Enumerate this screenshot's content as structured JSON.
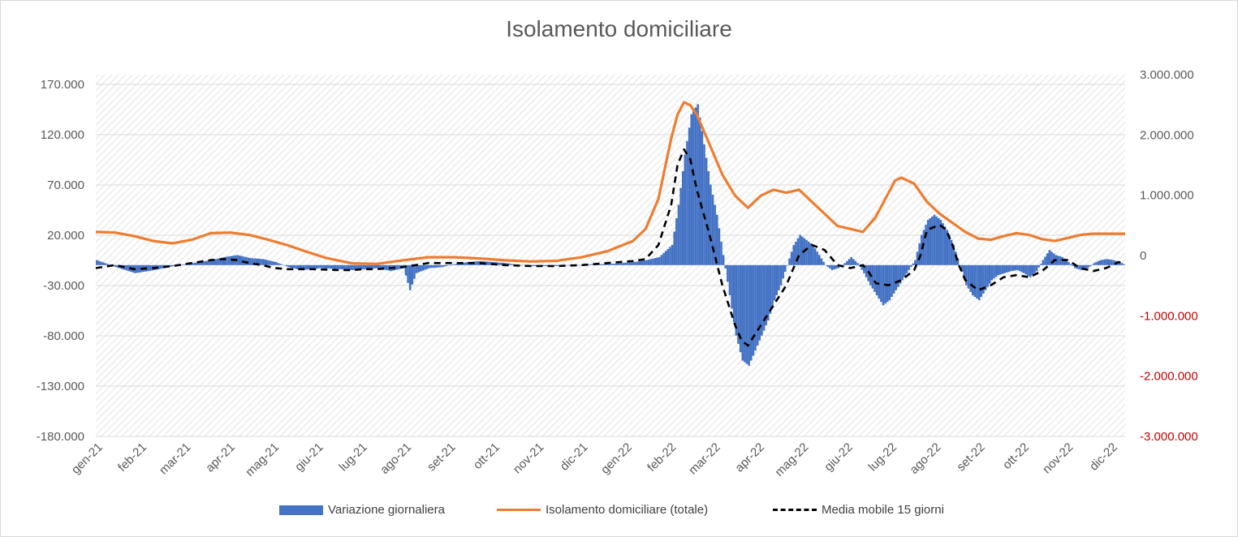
{
  "chart_data": {
    "type": "bar+line",
    "title": "Isolamento domiciliare",
    "x_labels": [
      "gen-21",
      "feb-21",
      "mar-21",
      "apr-21",
      "mag-21",
      "giu-21",
      "lug-21",
      "ago-21",
      "set-21",
      "ott-21",
      "nov-21",
      "dic-21",
      "gen-22",
      "feb-22",
      "mar-22",
      "apr-22",
      "mag-22",
      "giu-22",
      "lug-22",
      "ago-22",
      "set-22",
      "ott-22",
      "nov-22",
      "dic-22"
    ],
    "y_left": {
      "ticks": [
        "170.000",
        "120.000",
        "70.000",
        "20.000",
        "-30.000",
        "-80.000",
        "-130.000",
        "-180.000"
      ],
      "min": -180000,
      "max": 170000
    },
    "y_right": {
      "ticks": [
        "3.000.000",
        "2.000.000",
        "1.000.000",
        "0",
        "-1.000.000",
        "-2.000.000",
        "-3.000.000"
      ],
      "min": -3000000,
      "max": 3000000,
      "negative_color": "#c00000"
    },
    "grid": true,
    "legend_position": "bottom",
    "series": [
      {
        "name": "Variazione giornaliera",
        "type": "bar",
        "axis": "left",
        "color": "#4472c4",
        "points": [
          [
            0,
            5000
          ],
          [
            3,
            -2000
          ],
          [
            6,
            -8000
          ],
          [
            9,
            -5000
          ],
          [
            12,
            -1000
          ],
          [
            15,
            2000
          ],
          [
            18,
            5000
          ],
          [
            20,
            8000
          ],
          [
            22,
            10000
          ],
          [
            24,
            7000
          ],
          [
            26,
            6000
          ],
          [
            28,
            3000
          ],
          [
            30,
            -2000
          ],
          [
            32,
            -5000
          ],
          [
            35,
            -3000
          ],
          [
            38,
            -4000
          ],
          [
            40,
            -5000
          ],
          [
            42,
            -4000
          ],
          [
            44,
            -3000
          ],
          [
            46,
            -6000
          ],
          [
            48,
            -3000
          ],
          [
            49,
            -25000
          ],
          [
            50,
            -8000
          ],
          [
            52,
            -3000
          ],
          [
            54,
            -2000
          ],
          [
            56,
            1000
          ],
          [
            58,
            3000
          ],
          [
            60,
            4000
          ],
          [
            62,
            3000
          ],
          [
            64,
            2000
          ],
          [
            66,
            0
          ],
          [
            68,
            -1000
          ],
          [
            70,
            -1000
          ],
          [
            72,
            -1000
          ],
          [
            74,
            0
          ],
          [
            76,
            0
          ],
          [
            78,
            1000
          ],
          [
            80,
            1000
          ],
          [
            82,
            2000
          ],
          [
            84,
            3000
          ],
          [
            86,
            5000
          ],
          [
            88,
            8000
          ],
          [
            90,
            20000
          ],
          [
            91,
            60000
          ],
          [
            92,
            110000
          ],
          [
            93,
            150000
          ],
          [
            94,
            160000
          ],
          [
            95,
            120000
          ],
          [
            96,
            80000
          ],
          [
            97,
            50000
          ],
          [
            98,
            10000
          ],
          [
            99,
            -30000
          ],
          [
            100,
            -70000
          ],
          [
            101,
            -95000
          ],
          [
            102,
            -100000
          ],
          [
            103,
            -85000
          ],
          [
            104,
            -70000
          ],
          [
            105,
            -55000
          ],
          [
            106,
            -35000
          ],
          [
            107,
            -20000
          ],
          [
            108,
            0
          ],
          [
            109,
            20000
          ],
          [
            110,
            30000
          ],
          [
            111,
            25000
          ],
          [
            112,
            20000
          ],
          [
            113,
            10000
          ],
          [
            114,
            0
          ],
          [
            115,
            -5000
          ],
          [
            116,
            -3000
          ],
          [
            117,
            2000
          ],
          [
            118,
            8000
          ],
          [
            119,
            2000
          ],
          [
            120,
            -8000
          ],
          [
            121,
            -20000
          ],
          [
            122,
            -30000
          ],
          [
            123,
            -40000
          ],
          [
            124,
            -35000
          ],
          [
            125,
            -25000
          ],
          [
            126,
            -15000
          ],
          [
            127,
            -5000
          ],
          [
            128,
            5000
          ],
          [
            129,
            30000
          ],
          [
            130,
            45000
          ],
          [
            131,
            50000
          ],
          [
            132,
            45000
          ],
          [
            133,
            35000
          ],
          [
            134,
            20000
          ],
          [
            135,
            0
          ],
          [
            136,
            -20000
          ],
          [
            137,
            -30000
          ],
          [
            138,
            -35000
          ],
          [
            139,
            -25000
          ],
          [
            140,
            -15000
          ],
          [
            141,
            -10000
          ],
          [
            142,
            -8000
          ],
          [
            143,
            -6000
          ],
          [
            144,
            -5000
          ],
          [
            145,
            -8000
          ],
          [
            146,
            -12000
          ],
          [
            147,
            -6000
          ],
          [
            148,
            5000
          ],
          [
            149,
            15000
          ],
          [
            150,
            10000
          ],
          [
            151,
            8000
          ],
          [
            152,
            3000
          ],
          [
            153,
            -3000
          ],
          [
            154,
            -5000
          ],
          [
            155,
            -3000
          ],
          [
            156,
            2000
          ],
          [
            157,
            5000
          ],
          [
            158,
            6000
          ],
          [
            159,
            5000
          ],
          [
            160,
            3000
          ],
          [
            161,
            0
          ]
        ]
      },
      {
        "name": "Isolamento domiciliare (totale)",
        "type": "line",
        "axis": "right",
        "color": "#ed7d31",
        "points": [
          [
            0,
            550000
          ],
          [
            3,
            540000
          ],
          [
            6,
            480000
          ],
          [
            9,
            400000
          ],
          [
            12,
            360000
          ],
          [
            15,
            420000
          ],
          [
            18,
            530000
          ],
          [
            21,
            540000
          ],
          [
            24,
            500000
          ],
          [
            27,
            420000
          ],
          [
            30,
            330000
          ],
          [
            33,
            220000
          ],
          [
            36,
            120000
          ],
          [
            40,
            30000
          ],
          [
            44,
            20000
          ],
          [
            48,
            80000
          ],
          [
            52,
            130000
          ],
          [
            56,
            130000
          ],
          [
            60,
            110000
          ],
          [
            64,
            80000
          ],
          [
            68,
            60000
          ],
          [
            72,
            70000
          ],
          [
            76,
            130000
          ],
          [
            80,
            230000
          ],
          [
            84,
            400000
          ],
          [
            86,
            600000
          ],
          [
            88,
            1100000
          ],
          [
            90,
            2100000
          ],
          [
            91,
            2500000
          ],
          [
            92,
            2700000
          ],
          [
            93,
            2650000
          ],
          [
            94,
            2500000
          ],
          [
            96,
            2000000
          ],
          [
            98,
            1500000
          ],
          [
            100,
            1150000
          ],
          [
            102,
            950000
          ],
          [
            104,
            1150000
          ],
          [
            106,
            1250000
          ],
          [
            108,
            1200000
          ],
          [
            110,
            1250000
          ],
          [
            112,
            1050000
          ],
          [
            114,
            850000
          ],
          [
            116,
            650000
          ],
          [
            118,
            600000
          ],
          [
            120,
            550000
          ],
          [
            122,
            800000
          ],
          [
            124,
            1200000
          ],
          [
            125,
            1400000
          ],
          [
            126,
            1450000
          ],
          [
            128,
            1350000
          ],
          [
            130,
            1050000
          ],
          [
            132,
            850000
          ],
          [
            134,
            700000
          ],
          [
            136,
            550000
          ],
          [
            138,
            440000
          ],
          [
            140,
            420000
          ],
          [
            142,
            480000
          ],
          [
            144,
            530000
          ],
          [
            146,
            500000
          ],
          [
            148,
            430000
          ],
          [
            150,
            400000
          ],
          [
            152,
            450000
          ],
          [
            154,
            500000
          ],
          [
            156,
            520000
          ],
          [
            161,
            520000
          ]
        ]
      },
      {
        "name": "Media mobile 15 giorni",
        "type": "line",
        "axis": "left",
        "color": "#000000",
        "dash": true,
        "points": [
          [
            0,
            -3000
          ],
          [
            3,
            0
          ],
          [
            6,
            -4000
          ],
          [
            9,
            -3000
          ],
          [
            12,
            -1000
          ],
          [
            15,
            2000
          ],
          [
            18,
            5000
          ],
          [
            20,
            6000
          ],
          [
            22,
            5000
          ],
          [
            24,
            2000
          ],
          [
            26,
            0
          ],
          [
            28,
            -3000
          ],
          [
            30,
            -4000
          ],
          [
            34,
            -4000
          ],
          [
            38,
            -5000
          ],
          [
            40,
            -5000
          ],
          [
            42,
            -4000
          ],
          [
            44,
            -4000
          ],
          [
            46,
            -3000
          ],
          [
            48,
            -2000
          ],
          [
            50,
            0
          ],
          [
            52,
            2000
          ],
          [
            56,
            2000
          ],
          [
            60,
            2000
          ],
          [
            64,
            0
          ],
          [
            68,
            -1000
          ],
          [
            72,
            -1000
          ],
          [
            76,
            0
          ],
          [
            80,
            2000
          ],
          [
            84,
            4000
          ],
          [
            86,
            6000
          ],
          [
            88,
            20000
          ],
          [
            90,
            60000
          ],
          [
            91,
            100000
          ],
          [
            92,
            115000
          ],
          [
            93,
            105000
          ],
          [
            94,
            75000
          ],
          [
            96,
            30000
          ],
          [
            98,
            -20000
          ],
          [
            100,
            -60000
          ],
          [
            101,
            -75000
          ],
          [
            102,
            -80000
          ],
          [
            104,
            -60000
          ],
          [
            106,
            -40000
          ],
          [
            108,
            -20000
          ],
          [
            110,
            10000
          ],
          [
            112,
            20000
          ],
          [
            114,
            15000
          ],
          [
            116,
            0
          ],
          [
            118,
            -3000
          ],
          [
            120,
            0
          ],
          [
            121,
            -8000
          ],
          [
            122,
            -18000
          ],
          [
            124,
            -20000
          ],
          [
            126,
            -15000
          ],
          [
            128,
            -5000
          ],
          [
            129,
            10000
          ],
          [
            130,
            35000
          ],
          [
            132,
            40000
          ],
          [
            133,
            35000
          ],
          [
            134,
            20000
          ],
          [
            135,
            0
          ],
          [
            136,
            -15000
          ],
          [
            138,
            -25000
          ],
          [
            140,
            -20000
          ],
          [
            142,
            -12000
          ],
          [
            144,
            -10000
          ],
          [
            146,
            -12000
          ],
          [
            148,
            -6000
          ],
          [
            150,
            5000
          ],
          [
            152,
            5000
          ],
          [
            154,
            -3000
          ],
          [
            156,
            -6000
          ],
          [
            158,
            -3000
          ],
          [
            160,
            3000
          ],
          [
            161,
            2000
          ]
        ]
      }
    ]
  }
}
